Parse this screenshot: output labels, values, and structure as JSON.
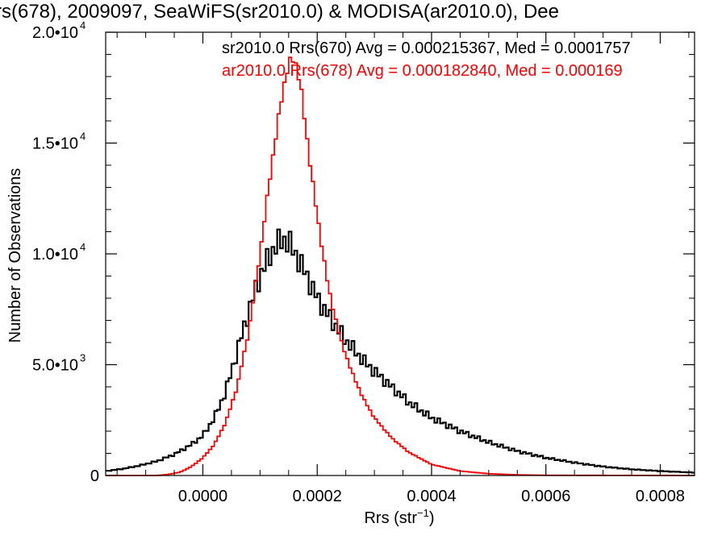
{
  "chart_data": {
    "type": "histogram",
    "title": "rs(678), 2009097, SeaWiFS(sr2010.0) & MODISA(ar2010.0), Dee",
    "xlabel": "Rrs (str",
    "xlabel_sup": "−1",
    "xlabel_tail": ")",
    "ylabel": "Number of Observations",
    "xlim": [
      -0.00017,
      0.00086
    ],
    "ylim": [
      0,
      20000
    ],
    "x_ticks": [
      {
        "value": 0.0,
        "label": "0.0000"
      },
      {
        "value": 0.0002,
        "label": "0.0002"
      },
      {
        "value": 0.0004,
        "label": "0.0004"
      },
      {
        "value": 0.0006,
        "label": "0.0006"
      },
      {
        "value": 0.0008,
        "label": "0.0008"
      }
    ],
    "y_ticks": [
      {
        "value": 0,
        "label": "0",
        "exp": ""
      },
      {
        "value": 5000,
        "label": "5.0•10",
        "exp": "3"
      },
      {
        "value": 10000,
        "label": "1.0•10",
        "exp": "4"
      },
      {
        "value": 15000,
        "label": "1.5•10",
        "exp": "4"
      },
      {
        "value": 20000,
        "label": "2.0•10",
        "exp": "4"
      }
    ],
    "legend": [
      {
        "text": "sr2010.0 Rrs(670) Avg = 0.000215367, Med = 0.0001757",
        "color": "#000000"
      },
      {
        "text": "ar2010.0 Rrs(678) Avg = 0.000182840, Med = 0.000169",
        "color": "#ff0000"
      }
    ],
    "legend_position": "top-right",
    "grid": false,
    "bin_width": 5e-06,
    "series": [
      {
        "name": "sr2010.0 Rrs(670)",
        "color": "#000000",
        "x": [
          -0.00017,
          -0.00014,
          -0.00011,
          -8e-05,
          -5e-05,
          -2e-05,
          0.0,
          2e-05,
          4e-05,
          6e-05,
          8e-05,
          0.0001,
          0.00012,
          0.00014,
          0.00015,
          0.00016,
          0.00018,
          0.0002,
          0.00022,
          0.00025,
          0.00028,
          0.0003,
          0.00033,
          0.00036,
          0.0004,
          0.00045,
          0.0005,
          0.00055,
          0.0006,
          0.00065,
          0.0007,
          0.00075,
          0.0008,
          0.00086
        ],
        "y": [
          200,
          300,
          450,
          650,
          950,
          1400,
          1800,
          2600,
          3800,
          5600,
          7400,
          9000,
          10100,
          10700,
          10500,
          10100,
          9100,
          8000,
          7200,
          6100,
          5200,
          4700,
          4000,
          3300,
          2600,
          2000,
          1500,
          1100,
          800,
          580,
          400,
          280,
          200,
          130
        ]
      },
      {
        "name": "ar2010.0 Rrs(678)",
        "color": "#ff0000",
        "x": [
          -0.00017,
          -8e-05,
          -6e-05,
          -4e-05,
          -2e-05,
          0.0,
          2e-05,
          4e-05,
          6e-05,
          8e-05,
          0.0001,
          0.00012,
          0.00014,
          0.00015,
          0.00016,
          0.00017,
          0.00018,
          0.0002,
          0.00022,
          0.00024,
          0.00026,
          0.00028,
          0.0003,
          0.00033,
          0.00036,
          0.0004,
          0.00045,
          0.0005,
          0.00055,
          0.0006,
          0.00086
        ],
        "y": [
          0,
          0,
          50,
          150,
          400,
          800,
          1400,
          2400,
          4000,
          6500,
          10000,
          14000,
          17400,
          18600,
          18800,
          17800,
          15600,
          11700,
          8400,
          6200,
          4700,
          3500,
          2600,
          1700,
          1050,
          500,
          200,
          80,
          30,
          10,
          0
        ]
      }
    ]
  }
}
